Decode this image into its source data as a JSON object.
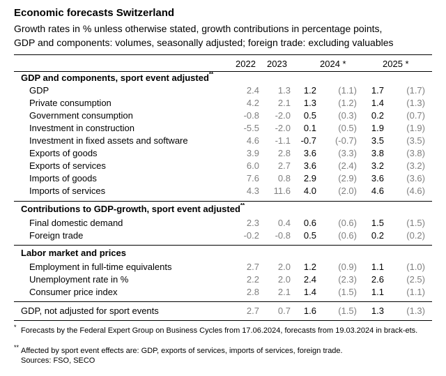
{
  "title": "Economic forecasts Switzerland",
  "subtitle_line1": "Growth rates in % unless otherwise stated, growth contributions in percentage points,",
  "subtitle_line2": "GDP and components: volumes, seasonally adjusted; foreign trade: excluding valuables",
  "columns": {
    "y2022": "2022",
    "y2023": "2023",
    "y2024": "2024 *",
    "y2025": "2025 *"
  },
  "sections": [
    {
      "heading": "GDP and components, sport event adjusted",
      "mark": "**",
      "rows": [
        {
          "label": "GDP",
          "v": [
            "2.4",
            "1.3",
            "1.2",
            "(1.1)",
            "1.7",
            "(1.7)"
          ]
        },
        {
          "label": "Private consumption",
          "v": [
            "4.2",
            "2.1",
            "1.3",
            "(1.2)",
            "1.4",
            "(1.3)"
          ]
        },
        {
          "label": "Government consumption",
          "v": [
            "-0.8",
            "-2.0",
            "0.5",
            "(0.3)",
            "0.2",
            "(0.7)"
          ]
        },
        {
          "label": "Investment in construction",
          "v": [
            "-5.5",
            "-2.0",
            "0.1",
            "(0.5)",
            "1.9",
            "(1.9)"
          ]
        },
        {
          "label": "Investment in fixed assets and software",
          "v": [
            "4.6",
            "-1.1",
            "-0.7",
            "(-0.7)",
            "3.5",
            "(3.5)"
          ]
        },
        {
          "label": "Exports of goods",
          "v": [
            "3.9",
            "2.8",
            "3.6",
            "(3.3)",
            "3.8",
            "(3.8)"
          ]
        },
        {
          "label": "Exports of services",
          "v": [
            "6.0",
            "2.7",
            "3.6",
            "(2.4)",
            "3.2",
            "(3.2)"
          ]
        },
        {
          "label": "Imports of goods",
          "v": [
            "7.6",
            "0.8",
            "2.9",
            "(2.9)",
            "3.6",
            "(3.6)"
          ]
        },
        {
          "label": "Imports of services",
          "v": [
            "4.3",
            "11.6",
            "4.0",
            "(2.0)",
            "4.6",
            "(4.6)"
          ]
        }
      ]
    },
    {
      "heading": "Contributions to GDP-growth, sport event adjusted",
      "mark": "**",
      "rows": [
        {
          "label": "Final domestic demand",
          "v": [
            "2.3",
            "0.4",
            "0.6",
            "(0.6)",
            "1.5",
            "(1.5)"
          ]
        },
        {
          "label": "Foreign trade",
          "v": [
            "-0.2",
            "-0.8",
            "0.5",
            "(0.6)",
            "0.2",
            "(0.2)"
          ]
        }
      ]
    },
    {
      "heading": "Labor market and prices",
      "mark": "",
      "rows": [
        {
          "label": "Employment in full-time equivalents",
          "v": [
            "2.7",
            "2.0",
            "1.2",
            "(0.9)",
            "1.1",
            "(1.0)"
          ]
        },
        {
          "label": "Unemployment rate in %",
          "v": [
            "2.2",
            "2.0",
            "2.4",
            "(2.3)",
            "2.6",
            "(2.5)"
          ]
        },
        {
          "label": "Consumer price index",
          "v": [
            "2.8",
            "2.1",
            "1.4",
            "(1.5)",
            "1.1",
            "(1.1)"
          ]
        }
      ]
    }
  ],
  "final_row": {
    "label": "GDP, not adjusted for sport events",
    "v": [
      "2.7",
      "0.7",
      "1.6",
      "(1.5)",
      "1.3",
      "(1.3)"
    ]
  },
  "footnotes": {
    "mark1": "*",
    "note1": "Forecasts by the Federal Expert Group on Business Cycles from 17.06.2024, forecasts from 19.03.2024 in brack-ets.",
    "mark2": "**",
    "note2": "Affected by sport event effects are: GDP, exports of services, imports of services, foreign trade.",
    "sources": "Sources: FSO, SECO"
  }
}
